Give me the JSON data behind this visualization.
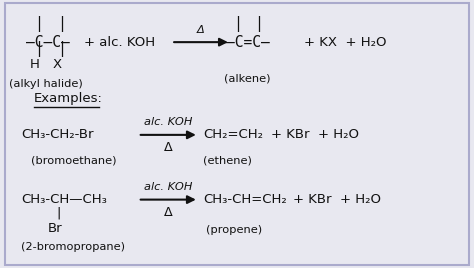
{
  "bg_color": "#e8e8f0",
  "border_color": "#aaaacc",
  "text_color": "#111111",
  "fig_width": 4.74,
  "fig_height": 2.68,
  "dpi": 100,
  "examples_label": "Examples:",
  "ex1_reactant": "CH₃-CH₂-Br",
  "ex1_reactant_label": "(bromoethane)",
  "ex1_reagent_top": "alc. KOH",
  "ex1_reagent_bot": "Δ",
  "ex1_product": "CH₂=CH₂",
  "ex1_product_label": "(ethene)",
  "ex1_byproducts": "+ KBr  + H₂O",
  "ex2_reactant": "CH₃-CH—CH₃",
  "ex2_reactant_sub": "Br",
  "ex2_reactant_label": "(2-bromopropane)",
  "ex2_reagent_top": "alc. KOH",
  "ex2_reagent_bot": "Δ",
  "ex2_product": "CH₃-CH=CH₂",
  "ex2_product_label": "(propene)",
  "ex2_byproducts": "+ KBr  + H₂O",
  "gen_plus_koh": "+ alc. KOH",
  "gen_delta": "Δ",
  "gen_byproducts": "+ KX  + H₂O",
  "gen_reactant_label": "(alkyl halide)",
  "gen_product_label": "(alkene)"
}
